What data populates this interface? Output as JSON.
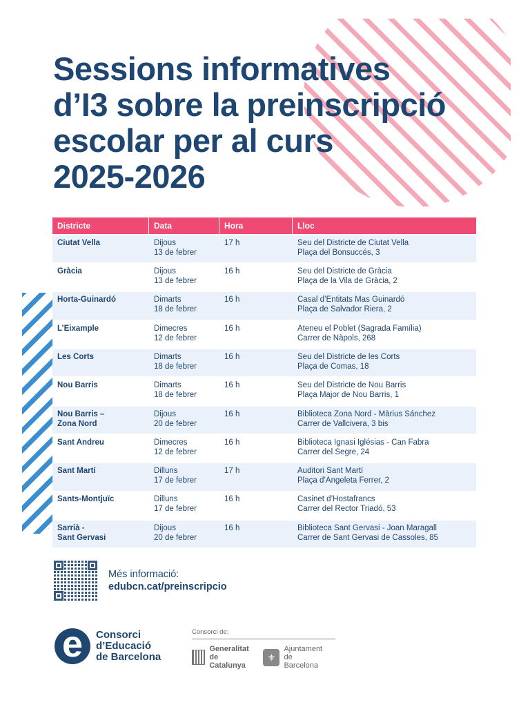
{
  "title": {
    "lines": [
      "Sessions informatives",
      "d’I3 sobre la preinscripció",
      "escolar per al curs",
      "2025-2026"
    ]
  },
  "colors": {
    "title": "#1f4670",
    "header_bg": "#ee4a73",
    "row_shade": "#eaf1fa",
    "pink_stripes": "#f5a9b8",
    "blue_stripes": "#3b8fd0"
  },
  "table": {
    "headers": [
      "Districte",
      "Data",
      "Hora",
      "Lloc"
    ],
    "rows": [
      {
        "district": [
          "Ciutat Vella"
        ],
        "day": "Dijous",
        "date": "13 de febrer",
        "time": "17 h",
        "place": "Seu del Districte de Ciutat Vella",
        "address": "Plaça del Bonsuccés, 3"
      },
      {
        "district": [
          "Gràcia"
        ],
        "day": "Dijous",
        "date": "13 de febrer",
        "time": "16 h",
        "place": "Seu del Districte de Gràcia",
        "address": "Plaça de la Vila de Gràcia, 2"
      },
      {
        "district": [
          "Horta-Guinardó"
        ],
        "day": "Dimarts",
        "date": "18 de febrer",
        "time": "16 h",
        "place": "Casal d’Entitats Mas Guinardó",
        "address": "Plaça de Salvador Riera, 2"
      },
      {
        "district": [
          "L’Eixample"
        ],
        "day": "Dimecres",
        "date": "12 de febrer",
        "time": "16 h",
        "place": "Ateneu el Poblet (Sagrada Família)",
        "address": "Carrer de Nàpols, 268"
      },
      {
        "district": [
          "Les Corts"
        ],
        "day": "Dimarts",
        "date": "18 de febrer",
        "time": "16 h",
        "place": "Seu del Districte de les Corts",
        "address": "Plaça de Comas, 18"
      },
      {
        "district": [
          "Nou Barris"
        ],
        "day": "Dimarts",
        "date": "18 de febrer",
        "time": "16 h",
        "place": "Seu del Districte de Nou Barris",
        "address": "Plaça Major de Nou Barris, 1"
      },
      {
        "district": [
          "Nou Barris –",
          "Zona Nord"
        ],
        "day": "Dijous",
        "date": "20 de febrer",
        "time": "16 h",
        "place": "Biblioteca Zona Nord - Màrius Sánchez",
        "address": "Carrer de Vallcivera, 3 bis"
      },
      {
        "district": [
          "Sant Andreu"
        ],
        "day": "Dimecres",
        "date": "12 de febrer",
        "time": "16 h",
        "place": "Biblioteca Ignasi Iglésias - Can Fabra",
        "address": "Carrer del Segre, 24"
      },
      {
        "district": [
          "Sant Martí"
        ],
        "day": "Dilluns",
        "date": "17 de febrer",
        "time": "17 h",
        "place": "Auditori Sant Martí",
        "address": "Plaça d’Angeleta Ferrer, 2"
      },
      {
        "district": [
          "Sants-Montjuïc"
        ],
        "day": "Dilluns",
        "date": "17 de febrer",
        "time": "16 h",
        "place": "Casinet d’Hostafrancs",
        "address": "Carrer del Rector Triadó, 53"
      },
      {
        "district": [
          "Sarrià -",
          "Sant Gervasi"
        ],
        "day": "Dijous",
        "date": "20 de febrer",
        "time": "16 h",
        "place": "Biblioteca Sant Gervasi - Joan Maragall",
        "address": "Carrer de Sant Gervasi de Cassoles, 85"
      }
    ]
  },
  "more_info": {
    "label": "Més informació:",
    "link": "edubcn.cat/preinscripcio",
    "qr_icon": "qr-code-icon"
  },
  "logo": {
    "letter": "e",
    "lines": [
      "Consorci",
      "d’Educació",
      "de Barcelona"
    ]
  },
  "consorci": {
    "label": "Consorci de:",
    "partners": [
      {
        "icon": "generalitat-icon",
        "lines": [
          "Generalitat",
          "de Catalunya"
        ]
      },
      {
        "icon": "ajuntament-icon",
        "lines": [
          "Ajuntament",
          "de Barcelona"
        ]
      }
    ]
  }
}
